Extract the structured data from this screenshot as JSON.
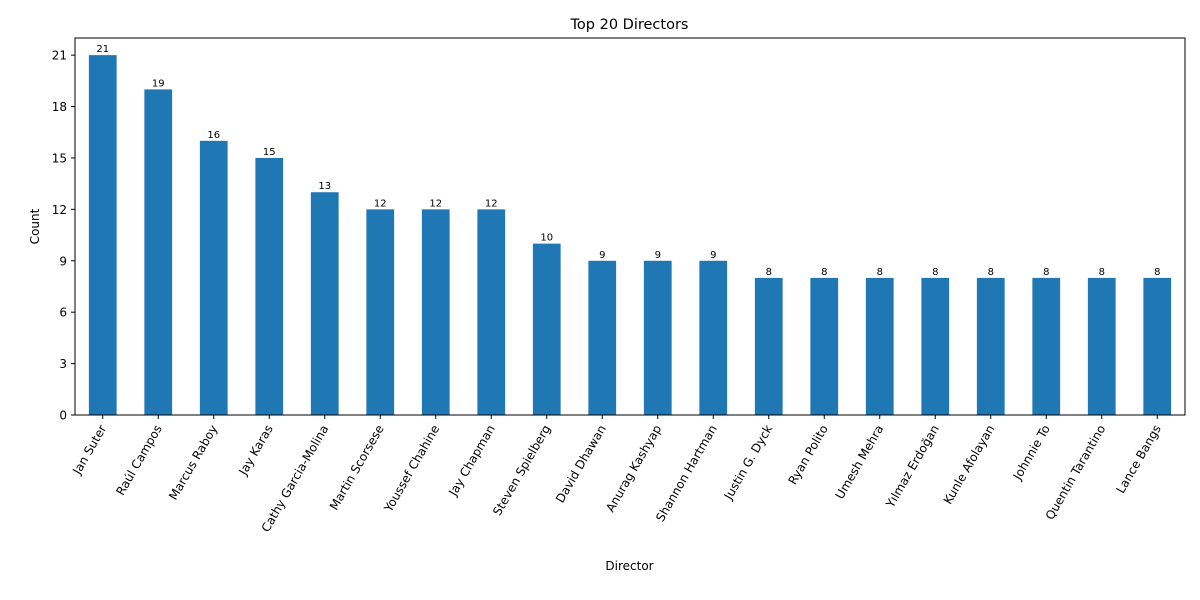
{
  "chart_data": {
    "type": "bar",
    "title": "Top 20 Directors",
    "xlabel": "Director",
    "ylabel": "Count",
    "ylim": [
      0,
      22
    ],
    "yticks": [
      0,
      3,
      6,
      9,
      12,
      15,
      18,
      21
    ],
    "categories": [
      "Jan Suter",
      "Raúl Campos",
      "Marcus Raboy",
      "Jay Karas",
      "Cathy Garcia-Molina",
      "Martin Scorsese",
      "Youssef Chahine",
      "Jay Chapman",
      "Steven Spielberg",
      "David Dhawan",
      "Anurag Kashyap",
      "Shannon Hartman",
      "Justin G. Dyck",
      "Ryan Polito",
      "Umesh Mehra",
      "Yılmaz Erdoğan",
      "Kunle Afolayan",
      "Johnnie To",
      "Quentin Tarantino",
      "Lance Bangs"
    ],
    "values": [
      21,
      19,
      16,
      15,
      13,
      12,
      12,
      12,
      10,
      9,
      9,
      9,
      8,
      8,
      8,
      8,
      8,
      8,
      8,
      8
    ],
    "bar_color": "#1f77b4",
    "grid": false,
    "data_labels": true
  }
}
